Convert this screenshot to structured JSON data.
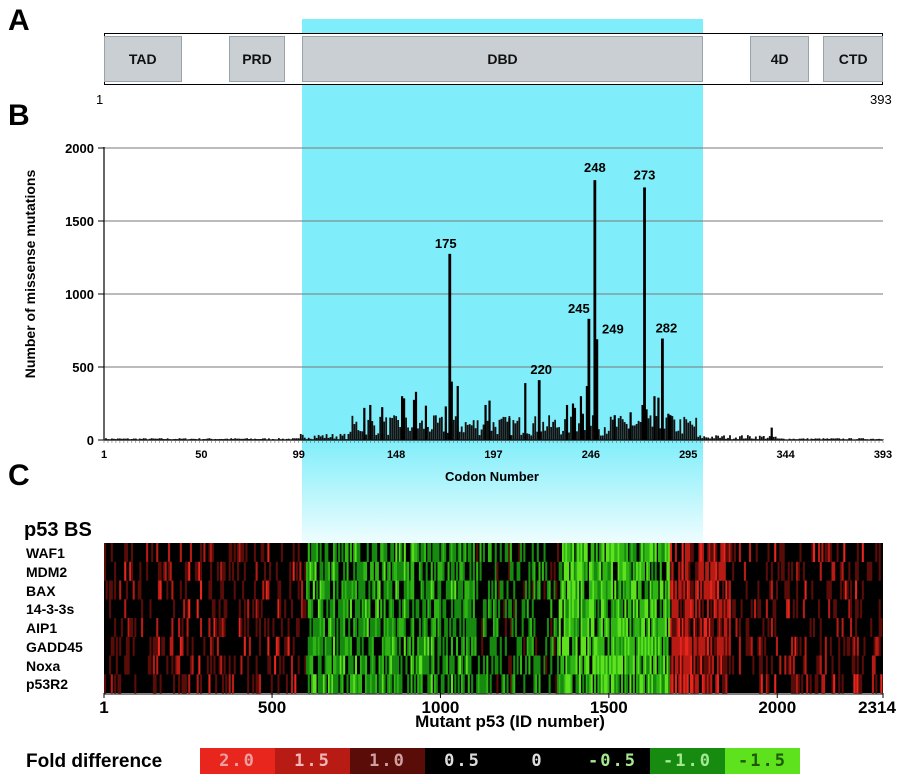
{
  "panel_letters": {
    "a": "A",
    "b": "B",
    "c": "C"
  },
  "protein_map": {
    "start_label": "1",
    "end_label": "393",
    "domains": [
      {
        "label": "TAD",
        "start": 1,
        "end": 40
      },
      {
        "label": "PRD",
        "start": 64,
        "end": 92
      },
      {
        "label": "DBD",
        "start": 94,
        "end": 312
      },
      {
        "label": "4D",
        "start": 326,
        "end": 356
      },
      {
        "label": "CTD",
        "start": 363,
        "end": 393
      }
    ],
    "highlight_codon_range": [
      94,
      300
    ],
    "highlight_color": "#80eefa"
  },
  "chart_data": [
    {
      "type": "bar",
      "title": "",
      "xlabel": "Codon Number",
      "ylabel": "Number of missense mutations",
      "xlim": [
        1,
        393
      ],
      "ylim": [
        0,
        2000
      ],
      "grid": true,
      "x_ticks": [
        1,
        50,
        99,
        148,
        197,
        246,
        295,
        344,
        393
      ],
      "y_ticks": [
        0,
        500,
        1000,
        1500,
        2000
      ],
      "highlight_codon_range": [
        99,
        300
      ],
      "labeled_hotspots": [
        {
          "codon": 175,
          "value": 1275,
          "label": "175"
        },
        {
          "codon": 220,
          "value": 410,
          "label": "220"
        },
        {
          "codon": 245,
          "value": 830,
          "label": "245"
        },
        {
          "codon": 248,
          "value": 1780,
          "label": "248"
        },
        {
          "codon": 249,
          "value": 690,
          "label": "249"
        },
        {
          "codon": 273,
          "value": 1730,
          "label": "273"
        },
        {
          "codon": 282,
          "value": 695,
          "label": "282"
        }
      ],
      "notable_bars": [
        {
          "codon": 132,
          "value": 220
        },
        {
          "codon": 135,
          "value": 240
        },
        {
          "codon": 141,
          "value": 225
        },
        {
          "codon": 151,
          "value": 300
        },
        {
          "codon": 152,
          "value": 285
        },
        {
          "codon": 157,
          "value": 275
        },
        {
          "codon": 158,
          "value": 330
        },
        {
          "codon": 163,
          "value": 235
        },
        {
          "codon": 173,
          "value": 230
        },
        {
          "codon": 176,
          "value": 400
        },
        {
          "codon": 179,
          "value": 370
        },
        {
          "codon": 193,
          "value": 240
        },
        {
          "codon": 195,
          "value": 270
        },
        {
          "codon": 205,
          "value": 150
        },
        {
          "codon": 213,
          "value": 390
        },
        {
          "codon": 234,
          "value": 240
        },
        {
          "codon": 237,
          "value": 250
        },
        {
          "codon": 238,
          "value": 220
        },
        {
          "codon": 241,
          "value": 300
        },
        {
          "codon": 242,
          "value": 180
        },
        {
          "codon": 244,
          "value": 370
        },
        {
          "codon": 258,
          "value": 170
        },
        {
          "codon": 266,
          "value": 190
        },
        {
          "codon": 272,
          "value": 240
        },
        {
          "codon": 274,
          "value": 210
        },
        {
          "codon": 278,
          "value": 300
        },
        {
          "codon": 280,
          "value": 290
        },
        {
          "codon": 285,
          "value": 180
        },
        {
          "codon": 286,
          "value": 170
        },
        {
          "codon": 337,
          "value": 85
        }
      ]
    },
    {
      "type": "heatmap",
      "title": "p53 BS",
      "xlabel": "Mutant p53 (ID number)",
      "rows": [
        "WAF1",
        "MDM2",
        "BAX",
        "14-3-3s",
        "AIP1",
        "GADD45",
        "Noxa",
        "p53R2"
      ],
      "xlim": [
        1,
        2314
      ],
      "x_ticks": [
        1,
        500,
        1000,
        1500,
        2000,
        2314
      ],
      "highlight_id_range": [
        580,
        1780
      ],
      "color_scale": {
        "title": "Fold difference",
        "bins": [
          {
            "label": "2.0",
            "value": 2.0,
            "color": "#e8261d",
            "text_color": "#e8a0a0"
          },
          {
            "label": "1.5",
            "value": 1.5,
            "color": "#b81b14",
            "text_color": "#f0b8b8"
          },
          {
            "label": "1.0",
            "value": 1.0,
            "color": "#5a0c08",
            "text_color": "#d0a0a0"
          },
          {
            "label": "0.5",
            "value": 0.5,
            "color": "#000000",
            "text_color": "#dddddd"
          },
          {
            "label": "0",
            "value": 0,
            "color": "#000000",
            "text_color": "#dddddd"
          },
          {
            "label": "-0.5",
            "value": -0.5,
            "color": "#000000",
            "text_color": "#a4e890"
          },
          {
            "label": "-1.0",
            "value": -1.0,
            "color": "#178a10",
            "text_color": "#a4e890"
          },
          {
            "label": "-1.5",
            "value": -1.5,
            "color": "#5fe21e",
            "text_color": "#1d5a08"
          }
        ]
      }
    }
  ]
}
